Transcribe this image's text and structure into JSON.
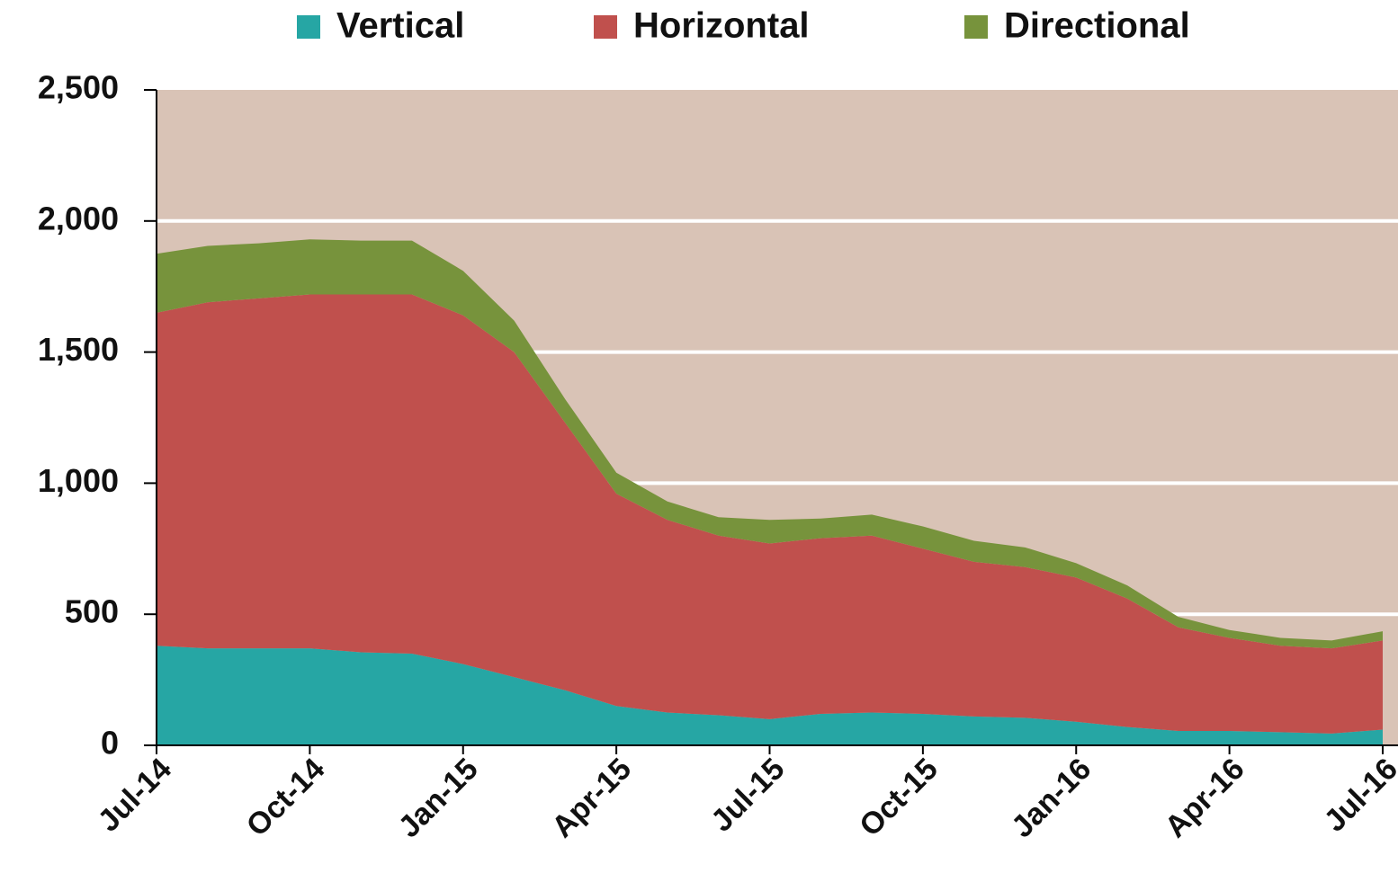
{
  "chart_data": {
    "type": "stacked-area",
    "categories": [
      "Jul-14",
      null,
      null,
      "Oct-14",
      null,
      null,
      "Jan-15",
      null,
      null,
      "Apr-15",
      null,
      null,
      "Jul-15",
      null,
      null,
      "Oct-15",
      null,
      null,
      "Jan-16",
      null,
      null,
      "Apr-16",
      null,
      null,
      "Jul-16"
    ],
    "series": [
      {
        "name": "Vertical",
        "color": "#26a6a4",
        "values": [
          380,
          370,
          370,
          370,
          355,
          350,
          310,
          260,
          210,
          150,
          125,
          115,
          100,
          120,
          125,
          120,
          110,
          105,
          90,
          70,
          55,
          55,
          50,
          45,
          60
        ]
      },
      {
        "name": "Horizontal",
        "color": "#c0504d",
        "values": [
          1270,
          1320,
          1335,
          1350,
          1365,
          1370,
          1330,
          1240,
          1020,
          810,
          735,
          685,
          670,
          670,
          675,
          630,
          590,
          575,
          550,
          490,
          395,
          355,
          330,
          325,
          340
        ]
      },
      {
        "name": "Directional",
        "color": "#77933c",
        "values": [
          225,
          215,
          210,
          210,
          205,
          205,
          170,
          120,
          90,
          80,
          70,
          70,
          90,
          75,
          80,
          85,
          80,
          75,
          55,
          50,
          40,
          30,
          30,
          30,
          35
        ]
      }
    ],
    "ylim": [
      0,
      2500
    ],
    "yticks": [
      0,
      500,
      {
        "value": 1000,
        "label": "1,000"
      },
      {
        "value": 1500,
        "label": "1,500"
      },
      {
        "value": 2000,
        "label": "2,000"
      },
      {
        "value": 2500,
        "label": "2,500"
      }
    ],
    "grid": true,
    "legend": "top"
  }
}
